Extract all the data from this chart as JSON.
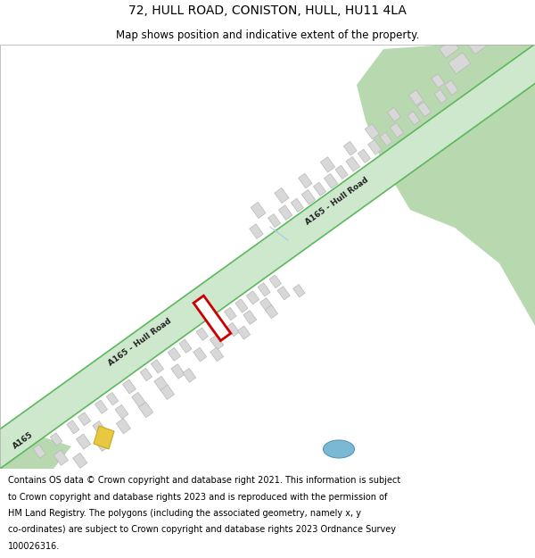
{
  "title": "72, HULL ROAD, CONISTON, HULL, HU11 4LA",
  "subtitle": "Map shows position and indicative extent of the property.",
  "footer_lines": [
    "Contains OS data © Crown copyright and database right 2021. This information is subject",
    "to Crown copyright and database rights 2023 and is reproduced with the permission of",
    "HM Land Registry. The polygons (including the associated geometry, namely x, y",
    "co-ordinates) are subject to Crown copyright and database rights 2023 Ordnance Survey",
    "100026316."
  ],
  "bg_color": "#fafafa",
  "road_fill": "#cde8cd",
  "road_edge": "#5cb85c",
  "road_edge_width": 1.2,
  "road_hw": 18,
  "building_fill": "#d8d8d8",
  "building_edge": "#b8b8b8",
  "green_fill": "#b8d8b0",
  "green_edge": "none",
  "pond_fill": "#7ab8d4",
  "pond_edge": "#5898b4",
  "yellow_fill": "#e8c840",
  "yellow_edge": "#c8a820",
  "plot_edge": "#cc0000",
  "plot_fill": "white",
  "plot_lw": 2.0,
  "title_fs": 10,
  "subtitle_fs": 8.5,
  "footer_fs": 7.0,
  "road_label_fs": 6.5,
  "road_label_color": "#222222"
}
